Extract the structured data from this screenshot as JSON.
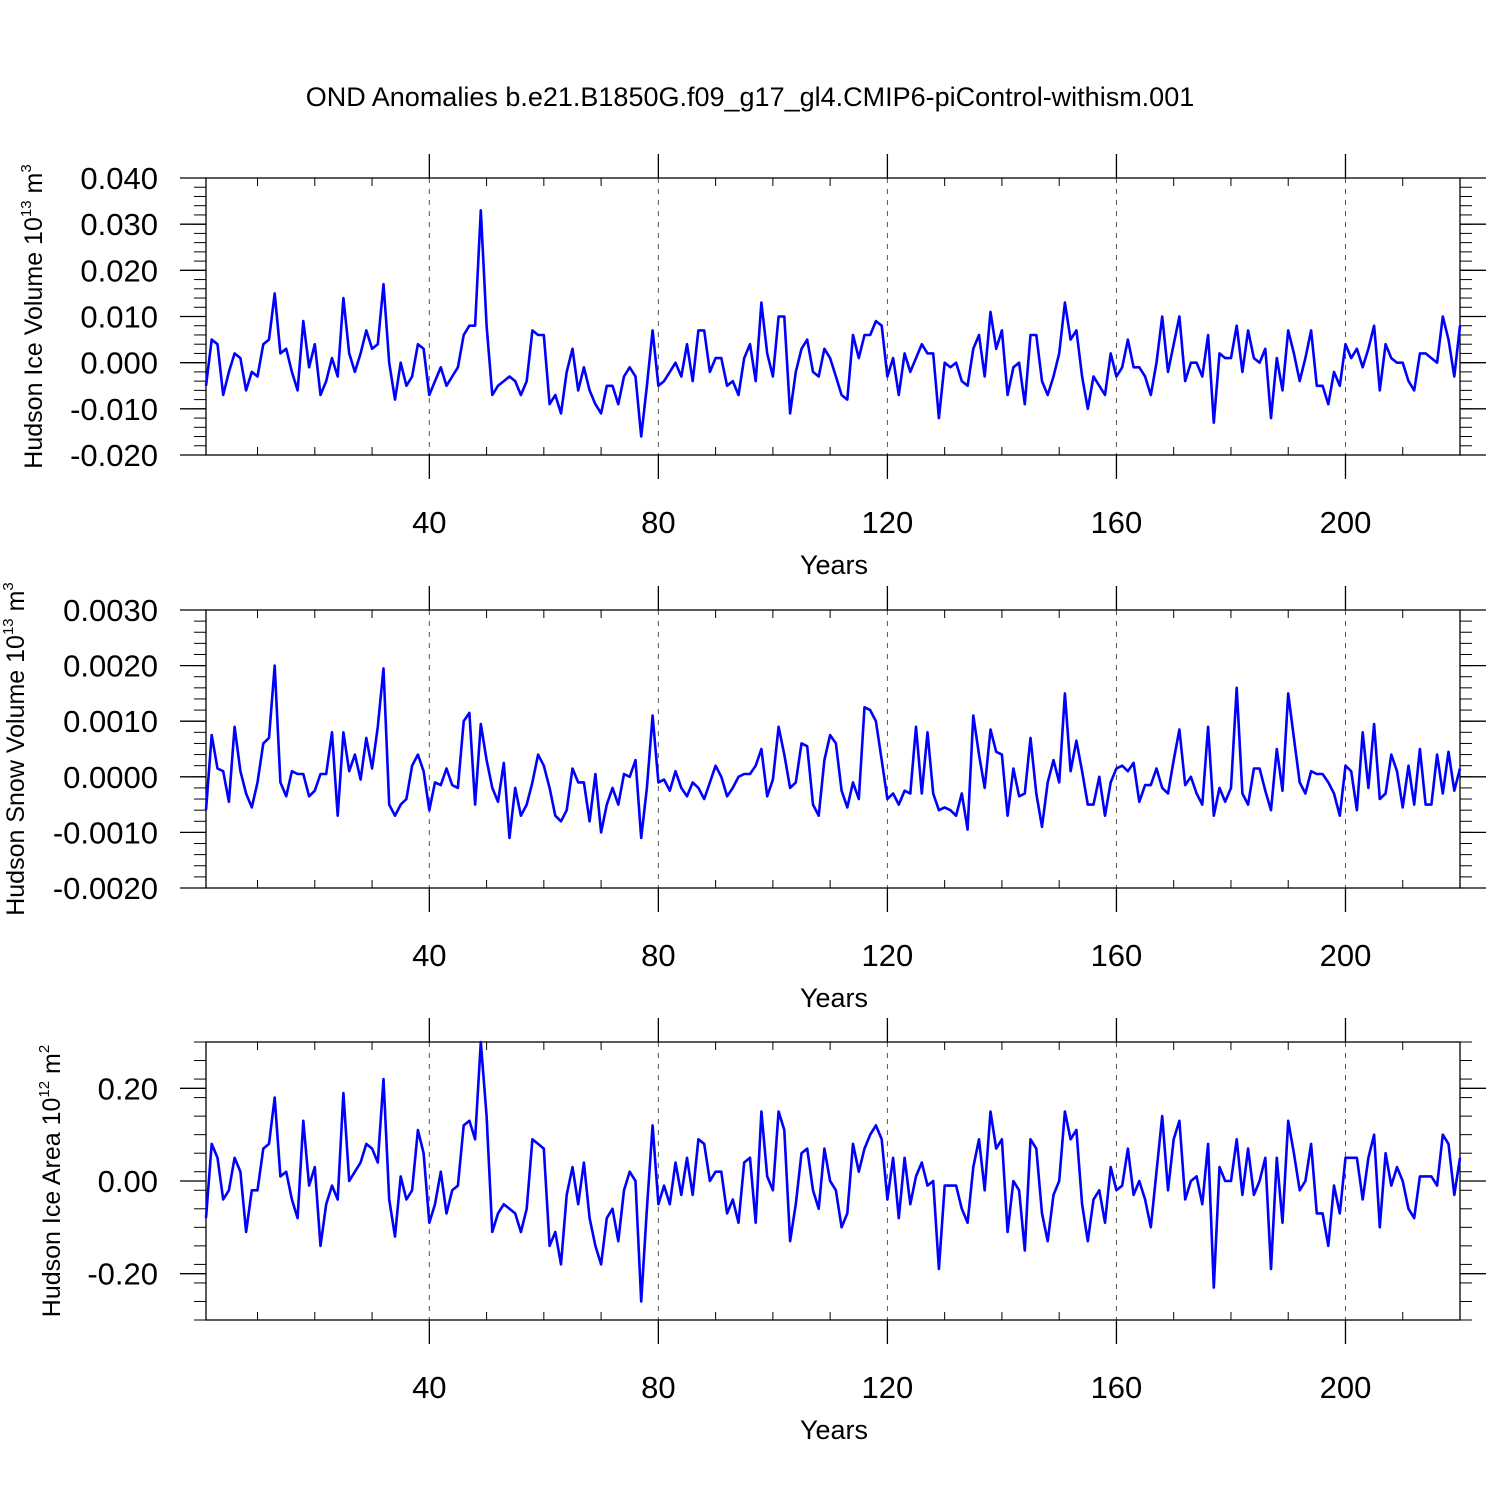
{
  "title": "OND Anomalies b.e21.B1850G.f09_g17_gl4.CMIP6-piControl-withism.001",
  "colors": {
    "series": "#0000ff",
    "axis": "#000000",
    "grid": "#555555"
  },
  "chart_data": [
    {
      "type": "line",
      "ylabel": {
        "main": "Hudson Ice Volume 10",
        "sup": "13",
        "unit": " m",
        "unit_sup": "3"
      },
      "xlabel": "Years",
      "xlim": [
        1,
        220
      ],
      "ylim": [
        -0.02,
        0.04
      ],
      "yticks": [
        -0.02,
        -0.01,
        0,
        0.01,
        0.02,
        0.03,
        0.04
      ],
      "ytick_labels": [
        "-0.020",
        "-0.010",
        "0.000",
        "0.010",
        "0.020",
        "0.030",
        "0.040"
      ],
      "xticks": [
        40,
        80,
        120,
        160,
        200
      ],
      "xtick_labels": [
        "40",
        "80",
        "120",
        "160",
        "200"
      ],
      "series": [
        {
          "name": "Hudson Ice Volume",
          "values": [
            -0.005,
            0.005,
            0.004,
            -0.007,
            -0.002,
            0.002,
            0.001,
            -0.006,
            -0.002,
            -0.003,
            0.004,
            0.005,
            0.015,
            0.002,
            0.003,
            -0.002,
            -0.006,
            0.009,
            -0.001,
            0.004,
            -0.007,
            -0.004,
            0.001,
            -0.003,
            0.014,
            0.002,
            -0.002,
            0.002,
            0.007,
            0.003,
            0.004,
            0.017,
            0.0,
            -0.008,
            0.0,
            -0.005,
            -0.003,
            0.004,
            0.003,
            -0.007,
            -0.004,
            -0.001,
            -0.005,
            -0.003,
            -0.001,
            0.006,
            0.008,
            0.008,
            0.033,
            0.008,
            -0.007,
            -0.005,
            -0.004,
            -0.003,
            -0.004,
            -0.007,
            -0.004,
            0.007,
            0.006,
            0.006,
            -0.009,
            -0.007,
            -0.011,
            -0.002,
            0.003,
            -0.006,
            -0.001,
            -0.006,
            -0.009,
            -0.011,
            -0.005,
            -0.005,
            -0.009,
            -0.003,
            -0.001,
            -0.003,
            -0.016,
            -0.005,
            0.007,
            -0.005,
            -0.004,
            -0.002,
            0.0,
            -0.003,
            0.004,
            -0.004,
            0.007,
            0.007,
            -0.002,
            0.001,
            0.001,
            -0.005,
            -0.004,
            -0.007,
            0.001,
            0.004,
            -0.004,
            0.013,
            0.002,
            -0.003,
            0.01,
            0.01,
            -0.011,
            -0.002,
            0.003,
            0.005,
            -0.002,
            -0.003,
            0.003,
            0.001,
            -0.003,
            -0.007,
            -0.008,
            0.006,
            0.001,
            0.006,
            0.006,
            0.009,
            0.008,
            -0.003,
            0.001,
            -0.007,
            0.002,
            -0.002,
            0.001,
            0.004,
            0.002,
            0.002,
            -0.012,
            0.0,
            -0.001,
            0.0,
            -0.004,
            -0.005,
            0.003,
            0.006,
            -0.003,
            0.011,
            0.003,
            0.007,
            -0.007,
            -0.001,
            0.0,
            -0.009,
            0.006,
            0.006,
            -0.004,
            -0.007,
            -0.003,
            0.002,
            0.013,
            0.005,
            0.007,
            -0.003,
            -0.01,
            -0.003,
            -0.005,
            -0.007,
            0.002,
            -0.003,
            -0.001,
            0.005,
            -0.001,
            -0.001,
            -0.003,
            -0.007,
            0.0,
            0.01,
            -0.002,
            0.004,
            0.01,
            -0.004,
            0.0,
            0.0,
            -0.003,
            0.006,
            -0.013,
            0.002,
            0.001,
            0.001,
            0.008,
            -0.002,
            0.007,
            0.001,
            0.0,
            0.003,
            -0.012,
            0.001,
            -0.006,
            0.007,
            0.002,
            -0.004,
            0.001,
            0.007,
            -0.005,
            -0.005,
            -0.009,
            -0.002,
            -0.005,
            0.004,
            0.001,
            0.003,
            -0.001,
            0.003,
            0.008,
            -0.006,
            0.004,
            0.001,
            0.0,
            0.0,
            -0.004,
            -0.006,
            0.002,
            0.002,
            0.001,
            0.0,
            0.01,
            0.005,
            -0.003,
            0.008
          ]
        }
      ]
    },
    {
      "type": "line",
      "ylabel": {
        "main": "Hudson Snow Volume 10",
        "sup": "13",
        "unit": " m",
        "unit_sup": "3"
      },
      "xlabel": "Years",
      "xlim": [
        1,
        220
      ],
      "ylim": [
        -0.002,
        0.003
      ],
      "yticks": [
        -0.002,
        -0.001,
        0,
        0.001,
        0.002,
        0.003
      ],
      "ytick_labels": [
        "-0.0020",
        "-0.0010",
        "0.0000",
        "0.0010",
        "0.0020",
        "0.0030"
      ],
      "xticks": [
        40,
        80,
        120,
        160,
        200
      ],
      "xtick_labels": [
        "40",
        "80",
        "120",
        "160",
        "200"
      ],
      "series": [
        {
          "name": "Hudson Snow Volume",
          "values": [
            -0.0006,
            0.00075,
            0.00015,
            0.0001,
            -0.00045,
            0.0009,
            0.0001,
            -0.0003,
            -0.00055,
            -0.0001,
            0.0006,
            0.0007,
            0.002,
            -0.0001,
            -0.00035,
            0.0001,
            5e-05,
            5e-05,
            -0.00035,
            -0.00025,
            5e-05,
            5e-05,
            0.0008,
            -0.0007,
            0.0008,
            0.0001,
            0.0004,
            -5e-05,
            0.0007,
            0.00015,
            0.0009,
            0.00195,
            -0.0005,
            -0.0007,
            -0.0005,
            -0.0004,
            0.0002,
            0.0004,
            0.0001,
            -0.0006,
            -0.0001,
            -0.00015,
            0.00015,
            -0.00015,
            -0.0002,
            0.001,
            0.00115,
            -0.0005,
            0.00095,
            0.0003,
            -0.0002,
            -0.00045,
            0.00025,
            -0.0011,
            -0.0002,
            -0.0007,
            -0.0005,
            -0.0001,
            0.0004,
            0.0002,
            -0.0002,
            -0.0007,
            -0.0008,
            -0.0006,
            0.00015,
            -0.0001,
            -0.0001,
            -0.0008,
            5e-05,
            -0.001,
            -0.0005,
            -0.0002,
            -0.0005,
            5e-05,
            0.0,
            0.0003,
            -0.0011,
            -0.0002,
            0.0011,
            -0.0001,
            -5e-05,
            -0.00025,
            0.0001,
            -0.0002,
            -0.00035,
            -0.0001,
            -0.0002,
            -0.0004,
            -0.0001,
            0.0002,
            0.0,
            -0.00035,
            -0.0002,
            0.0,
            5e-05,
            5e-05,
            0.0002,
            0.0005,
            -0.00035,
            -5e-05,
            0.0009,
            0.0004,
            -0.0002,
            -0.0001,
            0.0006,
            0.00055,
            -0.0005,
            -0.0007,
            0.0003,
            0.00075,
            0.0006,
            -0.00025,
            -0.00055,
            -0.0001,
            -0.0004,
            0.00125,
            0.0012,
            0.001,
            0.0003,
            -0.0004,
            -0.0003,
            -0.0005,
            -0.00025,
            -0.0003,
            0.0009,
            -0.0003,
            0.0008,
            -0.0003,
            -0.0006,
            -0.00055,
            -0.0006,
            -0.0007,
            -0.0003,
            -0.00095,
            0.0011,
            0.0004,
            -0.0002,
            0.00085,
            0.00045,
            0.0004,
            -0.0007,
            0.00015,
            -0.00035,
            -0.0003,
            0.0007,
            -0.0003,
            -0.0009,
            -0.0001,
            0.0003,
            -0.0001,
            0.0015,
            0.0001,
            0.00065,
            0.0001,
            -0.0005,
            -0.0005,
            0.0,
            -0.0007,
            -0.0001,
            0.00015,
            0.0002,
            0.0001,
            0.00025,
            -0.00045,
            -0.00015,
            -0.00015,
            0.00015,
            -0.0002,
            -0.0003,
            0.0003,
            0.00085,
            -0.00015,
            0.0,
            -0.0003,
            -0.0005,
            0.0009,
            -0.0007,
            -0.0002,
            -0.00045,
            -0.0002,
            0.0016,
            -0.0003,
            -0.0005,
            0.00015,
            0.00015,
            -0.00025,
            -0.0006,
            0.0005,
            -0.00025,
            0.0015,
            0.0007,
            -0.0001,
            -0.0003,
            0.0001,
            5e-05,
            5e-05,
            -0.0001,
            -0.0003,
            -0.0007,
            0.0002,
            0.0001,
            -0.0006,
            0.0008,
            -0.0002,
            0.00095,
            -0.0004,
            -0.0003,
            0.0004,
            0.0001,
            -0.00055,
            0.0002,
            -0.0005,
            0.0005,
            -0.0005,
            -0.0005,
            0.0004,
            -0.0003,
            0.00045,
            -0.00025,
            0.00015
          ]
        }
      ]
    },
    {
      "type": "line",
      "ylabel": {
        "main": "Hudson Ice Area 10",
        "sup": "12",
        "unit": " m",
        "unit_sup": "2"
      },
      "xlabel": "Years",
      "xlim": [
        1,
        220
      ],
      "ylim": [
        -0.3,
        0.3
      ],
      "yticks": [
        -0.2,
        0,
        0.2
      ],
      "ytick_labels": [
        "-0.20",
        "0.00",
        "0.20"
      ],
      "xticks": [
        40,
        80,
        120,
        160,
        200
      ],
      "xtick_labels": [
        "40",
        "80",
        "120",
        "160",
        "200"
      ],
      "series": [
        {
          "name": "Hudson Ice Area",
          "values": [
            -0.08,
            0.08,
            0.05,
            -0.04,
            -0.02,
            0.05,
            0.02,
            -0.11,
            -0.02,
            -0.02,
            0.07,
            0.08,
            0.18,
            0.01,
            0.02,
            -0.04,
            -0.08,
            0.13,
            -0.01,
            0.03,
            -0.14,
            -0.05,
            -0.01,
            -0.04,
            0.19,
            0.0,
            0.02,
            0.04,
            0.08,
            0.07,
            0.04,
            0.22,
            -0.04,
            -0.12,
            0.01,
            -0.04,
            -0.02,
            0.11,
            0.06,
            -0.09,
            -0.05,
            0.02,
            -0.07,
            -0.02,
            -0.01,
            0.12,
            0.13,
            0.09,
            0.3,
            0.14,
            -0.11,
            -0.07,
            -0.05,
            -0.06,
            -0.07,
            -0.11,
            -0.06,
            0.09,
            0.08,
            0.07,
            -0.14,
            -0.11,
            -0.18,
            -0.03,
            0.03,
            -0.05,
            0.04,
            -0.08,
            -0.14,
            -0.18,
            -0.08,
            -0.06,
            -0.13,
            -0.02,
            0.02,
            0.0,
            -0.26,
            -0.06,
            0.12,
            -0.05,
            -0.01,
            -0.05,
            0.04,
            -0.03,
            0.05,
            -0.03,
            0.09,
            0.08,
            0.0,
            0.02,
            0.02,
            -0.07,
            -0.04,
            -0.09,
            0.04,
            0.05,
            -0.09,
            0.15,
            0.01,
            -0.02,
            0.15,
            0.11,
            -0.13,
            -0.05,
            0.06,
            0.07,
            -0.02,
            -0.06,
            0.07,
            0.0,
            -0.02,
            -0.1,
            -0.07,
            0.08,
            0.02,
            0.07,
            0.1,
            0.12,
            0.09,
            -0.04,
            0.05,
            -0.08,
            0.05,
            -0.05,
            0.01,
            0.04,
            -0.01,
            0.0,
            -0.19,
            -0.01,
            -0.01,
            -0.01,
            -0.06,
            -0.09,
            0.03,
            0.09,
            -0.02,
            0.15,
            0.07,
            0.09,
            -0.11,
            0.0,
            -0.02,
            -0.15,
            0.09,
            0.07,
            -0.07,
            -0.13,
            -0.03,
            0.0,
            0.15,
            0.09,
            0.11,
            -0.05,
            -0.13,
            -0.04,
            -0.02,
            -0.09,
            0.03,
            -0.02,
            -0.01,
            0.07,
            -0.03,
            0.0,
            -0.04,
            -0.1,
            0.02,
            0.14,
            -0.02,
            0.09,
            0.13,
            -0.04,
            0.0,
            0.01,
            -0.05,
            0.08,
            -0.23,
            0.03,
            0.0,
            0.0,
            0.09,
            -0.03,
            0.07,
            -0.03,
            0.0,
            0.05,
            -0.19,
            0.05,
            -0.09,
            0.13,
            0.06,
            -0.02,
            0.0,
            0.08,
            -0.07,
            -0.07,
            -0.14,
            -0.01,
            -0.07,
            0.05,
            0.05,
            0.05,
            -0.04,
            0.05,
            0.1,
            -0.1,
            0.06,
            -0.01,
            0.03,
            0.0,
            -0.06,
            -0.08,
            0.01,
            0.01,
            0.01,
            -0.01,
            0.1,
            0.08,
            -0.03,
            0.05
          ]
        }
      ]
    }
  ]
}
